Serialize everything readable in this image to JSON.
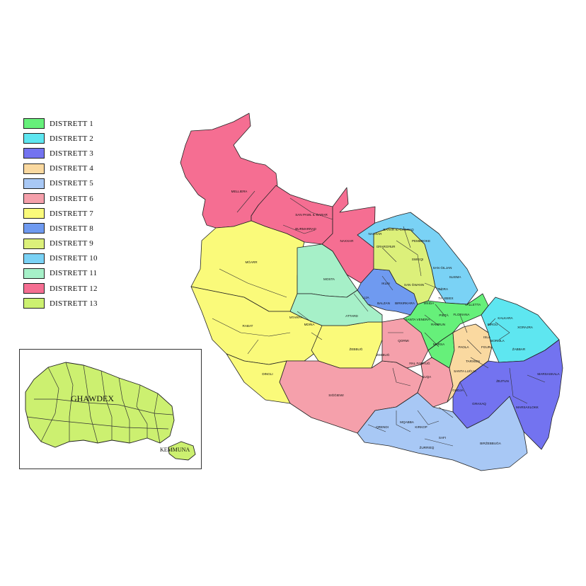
{
  "legend": [
    {
      "label": "DISTRETT 1",
      "color": "#66f07a"
    },
    {
      "label": "DISTRETT 2",
      "color": "#5ee6f0"
    },
    {
      "label": "DISTRETT 3",
      "color": "#7373f0"
    },
    {
      "label": "DISTRETT 4",
      "color": "#fad9a0"
    },
    {
      "label": "DISTRETT 5",
      "color": "#a8c8f5"
    },
    {
      "label": "DISTRETT 6",
      "color": "#f5a0ab"
    },
    {
      "label": "DISTRETT 7",
      "color": "#fafa7a"
    },
    {
      "label": "DISTRETT 8",
      "color": "#6f9af0"
    },
    {
      "label": "DISTRETT 9",
      "color": "#dcf07a"
    },
    {
      "label": "DISTRETT 10",
      "color": "#7ad2f5"
    },
    {
      "label": "DISTRETT 11",
      "color": "#a6f0c8"
    },
    {
      "label": "DISTRETT 12",
      "color": "#f56e92"
    },
    {
      "label": "DISTRETT 13",
      "color": "#ccf070"
    }
  ],
  "map_labels": {
    "mellieha": "MELLIEĦA",
    "san_pawl": "SAN PAWL IL-BAĦAR",
    "burmarrad": "BURMARRAD",
    "naxxar": "NAXXAR",
    "mgarr": "MĠARR",
    "mosta": "MOSTA",
    "rabat": "RABAT",
    "mtarfa": "MTARFA",
    "mdina": "MDINA",
    "attard": "ATTARD",
    "zebbug": "ŻEBBUĠ",
    "dingli": "DINGLI",
    "siggiewi": "SIĠĠIEWI",
    "lija": "LIJA",
    "iklin": "IKLIN",
    "balzan": "BALZAN",
    "birkirkara": "BIRKIRKARA",
    "gharghur": "GĦARGĦUR",
    "swieqi": "SWIEQI",
    "san_gwann": "SAN ĠWANN",
    "pembroke": "PEMBROKE",
    "bahar_ic_caghaq": "BAĦAR IĊ-ĊAGĦAQ",
    "san_giljan": "SAN ĠILJAN",
    "sliema": "SLIEMA",
    "gzira": "GŻIRA",
    "msida": "MSIDA",
    "ta_xbiex": "TA' XBIEX",
    "valletta": "VALLETTA",
    "floriana": "FLORIANA",
    "pieta": "PIETÀ",
    "hamrun": "ĦAMRUN",
    "santa_venera": "SANTA VENERA",
    "qormi": "QORMI",
    "marsa": "MARSA",
    "zebbug2": "ŻEBBUĠ",
    "hal_tarxien_luqa": "ĦAL FARRUĠ",
    "luqa": "LUQA",
    "paola": "PAOLA",
    "fgura": "FGURA",
    "tarxien": "TARXIEN",
    "santa_lucija": "SANTA LUĊIJA",
    "gudja": "GUDJA",
    "kalkara": "KALKARA",
    "xghajra": "XGĦAJRA",
    "birgu": "BIRGU",
    "isla": "ISLA",
    "bormla": "BORMLA",
    "zabbar": "ŻABBAR",
    "zejtun": "ŻEJTUN",
    "marsaskala": "MARSASKALA",
    "ghaxaq": "GĦAXAQ",
    "marsaxlokk": "MARSAXLOKK",
    "mqabba": "MQABBA",
    "kirkop": "KIRKOP",
    "safi": "SAFI",
    "qrendi": "QRENDI",
    "zurrieq": "ŻURRIEQ",
    "birzebbuga": "BIRŻEBBUĠA"
  },
  "inset": {
    "gozo": "GHAWDEX",
    "comino": "KEMMUNA"
  }
}
